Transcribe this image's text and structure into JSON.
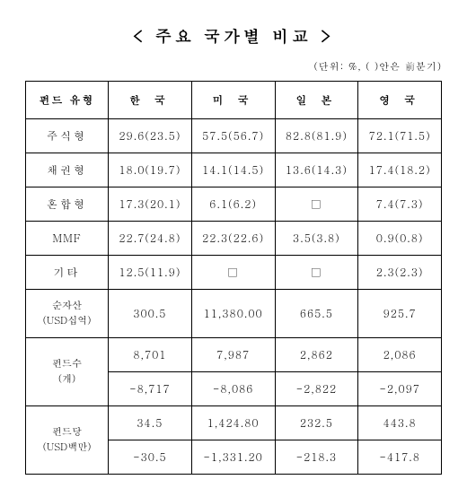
{
  "title": "< 주요 국가별 비교 >",
  "unit_note": "(단위: %, ( )안은 前분기)",
  "columns": {
    "c0": "펀드 유형",
    "c1": "한 국",
    "c2": "미 국",
    "c3": "일 본",
    "c4": "영 국"
  },
  "row_headers": {
    "r1": "주식형",
    "r2": "채권형",
    "r3": "혼합형",
    "r4": "MMF",
    "r5": "기타",
    "r6": "순자산\n(USD십억)",
    "r7": "펀드수\n(개)",
    "r8": "펀드당\n(USD백만)"
  },
  "cells": {
    "r1c1": "29.6(23.5)",
    "r1c2": "57.5(56.7)",
    "r1c3": "82.8(81.9)",
    "r1c4": "72.1(71.5)",
    "r2c1": "18.0(19.7)",
    "r2c2": "14.1(14.5)",
    "r2c3": "13.6(14.3)",
    "r2c4": "17.4(18.2)",
    "r3c1": "17.3(20.1)",
    "r3c2": "6.1(6.2)",
    "r3c3": "□",
    "r3c4": "7.4(7.3)",
    "r4c1": "22.7(24.8)",
    "r4c2": "22.3(22.6)",
    "r4c3": "3.5(3.8)",
    "r4c4": "0.9(0.8)",
    "r5c1": "12.5(11.9)",
    "r5c2": "□",
    "r5c3": "□",
    "r5c4": "2.3(2.3)",
    "r6c1": "300.5",
    "r6c2": "11,380.00",
    "r6c3": "665.5",
    "r6c4": "925.7",
    "r7ac1": "8,701",
    "r7ac2": "7,987",
    "r7ac3": "2,862",
    "r7ac4": "2,086",
    "r7bc1": "-8,717",
    "r7bc2": "-8,086",
    "r7bc3": "-2,822",
    "r7bc4": "-2,097",
    "r8ac1": "34.5",
    "r8ac2": "1,424.80",
    "r8ac3": "232.5",
    "r8ac4": "443.8",
    "r8bc1": "-30.5",
    "r8bc2": "-1,331.20",
    "r8bc3": "-218.3",
    "r8bc4": "-417.8"
  },
  "style": {
    "background": "#ffffff",
    "border_color": "#000000",
    "text_color": "#000000",
    "header_fontsize": 12,
    "cell_fontsize": 12,
    "title_fontsize": 18
  }
}
